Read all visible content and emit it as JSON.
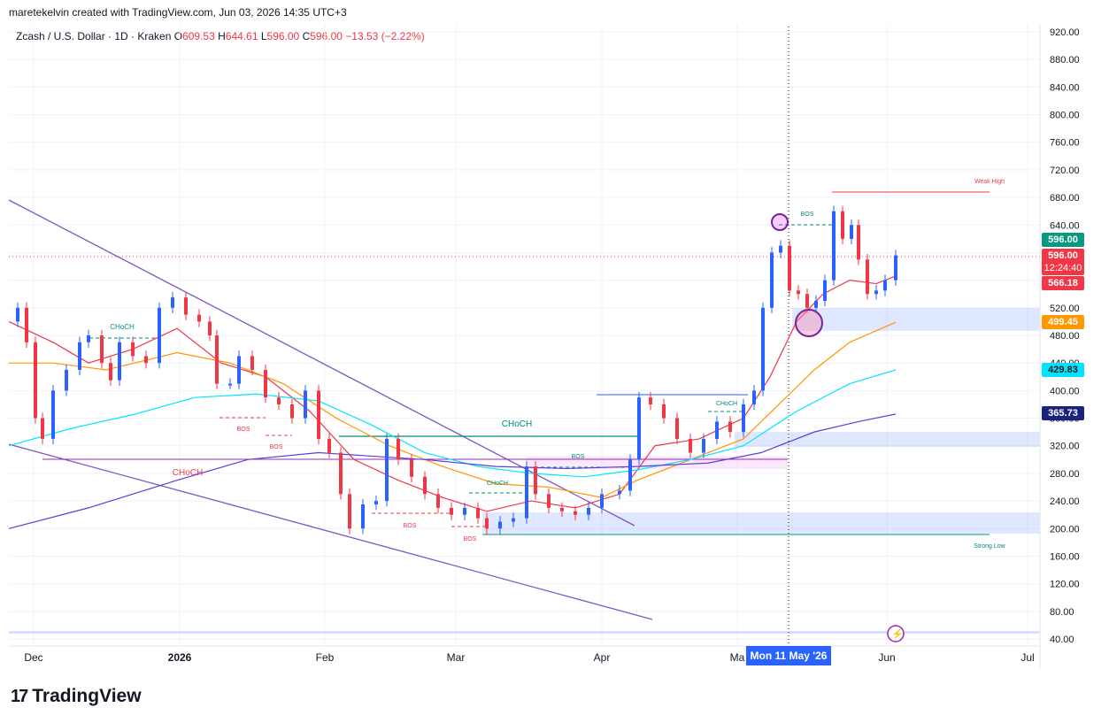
{
  "header": {
    "attribution": "maretekelvin created with TradingView.com, Jun 03, 2026 14:35 UTC+3"
  },
  "legend": {
    "symbol": "Zcash / U.S. Dollar · 1D · Kraken",
    "o_label": "O",
    "o_value": "609.53",
    "h_label": "H",
    "h_value": "644.61",
    "l_label": "L",
    "l_value": "596.00",
    "c_label": "C",
    "c_value": "596.00",
    "change": "−13.53 (−2.22%)"
  },
  "price_tags": {
    "last_green": "596.00",
    "last_red": "596.00",
    "countdown": "12:24:40",
    "ma_red": "566.18",
    "ma_orange": "499.45",
    "ma_cyan": "429.83",
    "ma_purple": "365.73"
  },
  "crosshair_date": "Mon 11 May '26",
  "brand": {
    "name": "TradingView"
  },
  "colors": {
    "up": "#2962ff",
    "down": "#f23645",
    "ma_red": "#f23645",
    "ma_orange": "#ff9800",
    "ma_cyan": "#00e5ff",
    "ma_purple": "#5b3fd6",
    "accent": "#2962ff",
    "green": "#089981"
  },
  "chart_data": {
    "type": "candlestick",
    "y_axis_ticks": [
      "920.00",
      "880.00",
      "840.00",
      "800.00",
      "760.00",
      "720.00",
      "680.00",
      "640.00",
      "600.00",
      "560.00",
      "520.00",
      "480.00",
      "440.00",
      "400.00",
      "360.00",
      "320.00",
      "280.00",
      "240.00",
      "200.00",
      "160.00",
      "120.00",
      "80.00",
      "40.00"
    ],
    "ylim": [
      40,
      920
    ],
    "x_axis_labels": [
      "Dec",
      "2026",
      "Feb",
      "Mar",
      "Apr",
      "Ma",
      "Jun",
      "Jul"
    ],
    "annotations": [
      "CHoCH",
      "CHoCH",
      "BOS",
      "CHoCH",
      "BOS",
      "CHoCH",
      "BOS",
      "BOS",
      "CHoCH",
      "BOS",
      "BOS",
      "BOS",
      "Weak High",
      "Strong Low"
    ],
    "ohlc_approx": [
      {
        "x": "Dec",
        "close": 500
      },
      {
        "x": "mid-Dec",
        "close": 440
      },
      {
        "x": "2026",
        "close": 520
      },
      {
        "x": "Jan",
        "close": 400
      },
      {
        "x": "Feb",
        "close": 300
      },
      {
        "x": "mid-Feb",
        "close": 200
      },
      {
        "x": "Mar",
        "close": 210
      },
      {
        "x": "Apr",
        "close": 260
      },
      {
        "x": "mid-Apr",
        "close": 380
      },
      {
        "x": "May",
        "close": 600
      },
      {
        "x": "mid-May",
        "close": 680
      },
      {
        "x": "Jun",
        "close": 596
      }
    ]
  }
}
